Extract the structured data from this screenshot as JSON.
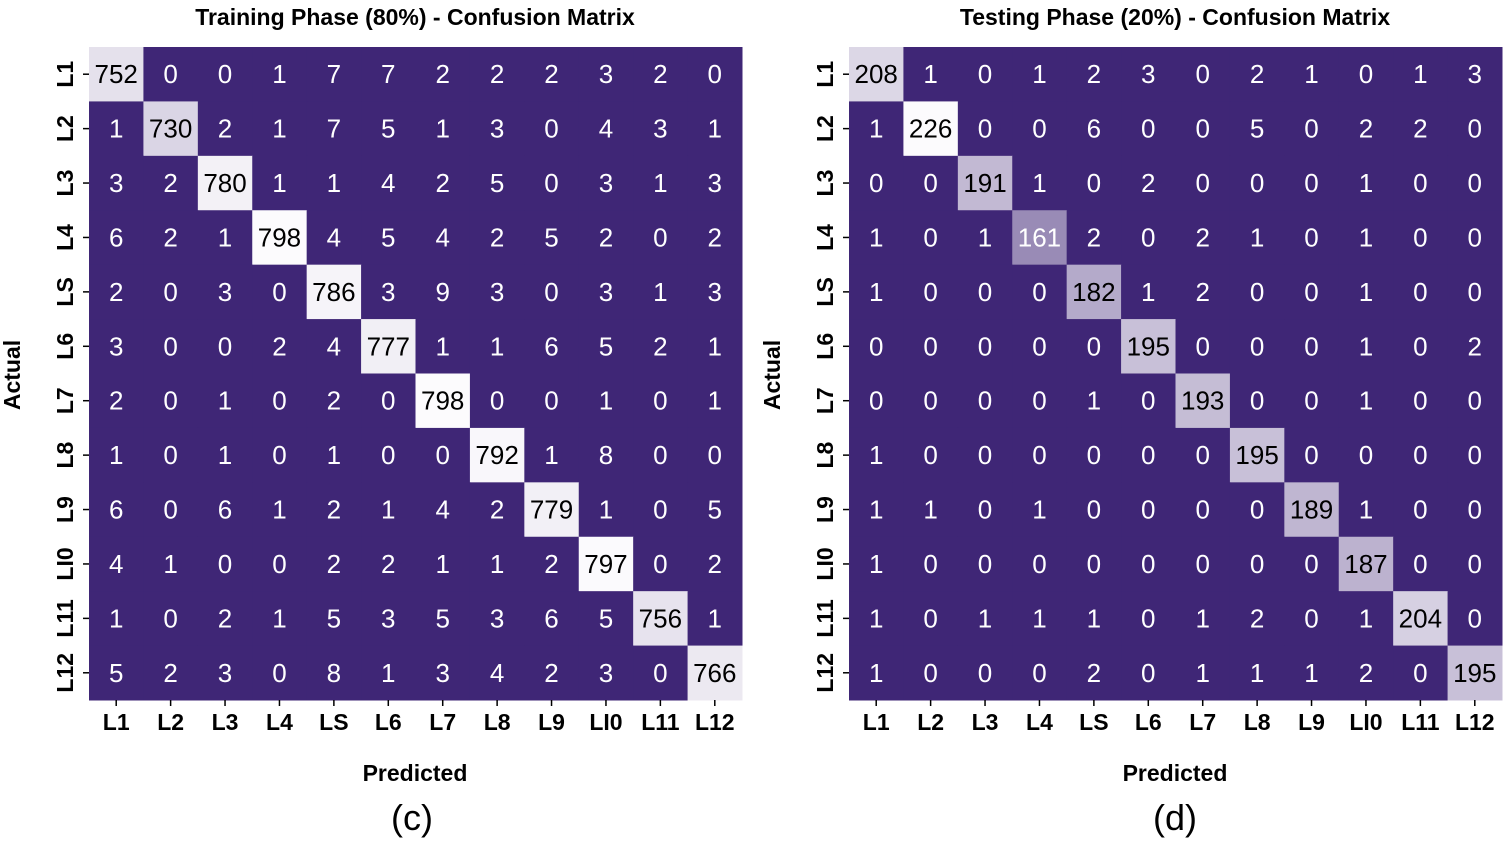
{
  "chart_data": [
    {
      "type": "heatmap",
      "title": "Training Phase (80%) - Confusion Matrix",
      "xlabel": "Predicted",
      "ylabel": "Actual",
      "caption": "(c)",
      "x_labels": [
        "L1",
        "L2",
        "L3",
        "L4",
        "LS",
        "L6",
        "L7",
        "L8",
        "L9",
        "LI0",
        "L11",
        "L12"
      ],
      "y_labels": [
        "L1",
        "L2",
        "L3",
        "L4",
        "LS",
        "L6",
        "L7",
        "L8",
        "L9",
        "LI0",
        "L11",
        "L12"
      ],
      "values": [
        [
          752,
          0,
          0,
          1,
          7,
          7,
          2,
          2,
          2,
          3,
          2,
          0
        ],
        [
          1,
          730,
          2,
          1,
          7,
          5,
          1,
          3,
          0,
          4,
          3,
          1
        ],
        [
          3,
          2,
          780,
          1,
          1,
          4,
          2,
          5,
          0,
          3,
          1,
          3
        ],
        [
          6,
          2,
          1,
          798,
          4,
          5,
          4,
          2,
          5,
          2,
          0,
          2
        ],
        [
          2,
          0,
          3,
          0,
          786,
          3,
          9,
          3,
          0,
          3,
          1,
          3
        ],
        [
          3,
          0,
          0,
          2,
          4,
          777,
          1,
          1,
          6,
          5,
          2,
          1
        ],
        [
          2,
          0,
          1,
          0,
          2,
          0,
          798,
          0,
          0,
          1,
          0,
          1
        ],
        [
          1,
          0,
          1,
          0,
          1,
          0,
          0,
          792,
          1,
          8,
          0,
          0
        ],
        [
          6,
          0,
          6,
          1,
          2,
          1,
          4,
          2,
          779,
          1,
          0,
          5
        ],
        [
          4,
          1,
          0,
          0,
          2,
          2,
          1,
          1,
          2,
          797,
          0,
          2
        ],
        [
          1,
          0,
          2,
          1,
          5,
          3,
          5,
          3,
          6,
          5,
          756,
          1
        ],
        [
          5,
          2,
          3,
          0,
          8,
          1,
          3,
          4,
          2,
          3,
          0,
          766
        ]
      ],
      "colormap": {
        "low": "#3f2676",
        "high": "#fcfbfd"
      }
    },
    {
      "type": "heatmap",
      "title": "Testing Phase (20%) - Confusion Matrix",
      "xlabel": "Predicted",
      "ylabel": "Actual",
      "caption": "(d)",
      "x_labels": [
        "L1",
        "L2",
        "L3",
        "L4",
        "LS",
        "L6",
        "L7",
        "L8",
        "L9",
        "LI0",
        "L11",
        "L12"
      ],
      "y_labels": [
        "L1",
        "L2",
        "L3",
        "L4",
        "LS",
        "L6",
        "L7",
        "L8",
        "L9",
        "LI0",
        "L11",
        "L12"
      ],
      "values": [
        [
          208,
          1,
          0,
          1,
          2,
          3,
          0,
          2,
          1,
          0,
          1,
          3
        ],
        [
          1,
          226,
          0,
          0,
          6,
          0,
          0,
          5,
          0,
          2,
          2,
          0
        ],
        [
          0,
          0,
          191,
          1,
          0,
          2,
          0,
          0,
          0,
          1,
          0,
          0
        ],
        [
          1,
          0,
          1,
          161,
          2,
          0,
          2,
          1,
          0,
          1,
          0,
          0
        ],
        [
          1,
          0,
          0,
          0,
          182,
          1,
          2,
          0,
          0,
          1,
          0,
          0
        ],
        [
          0,
          0,
          0,
          0,
          0,
          195,
          0,
          0,
          0,
          1,
          0,
          2
        ],
        [
          0,
          0,
          0,
          0,
          1,
          0,
          193,
          0,
          0,
          1,
          0,
          0
        ],
        [
          1,
          0,
          0,
          0,
          0,
          0,
          0,
          195,
          0,
          0,
          0,
          0
        ],
        [
          1,
          1,
          0,
          1,
          0,
          0,
          0,
          0,
          189,
          1,
          0,
          0
        ],
        [
          1,
          0,
          0,
          0,
          0,
          0,
          0,
          0,
          0,
          187,
          0,
          0
        ],
        [
          1,
          0,
          1,
          1,
          1,
          0,
          1,
          2,
          0,
          1,
          204,
          0
        ],
        [
          1,
          0,
          0,
          0,
          2,
          0,
          1,
          1,
          1,
          2,
          0,
          195
        ]
      ],
      "colormap": {
        "low": "#3f2676",
        "high": "#fcfbfd"
      }
    }
  ]
}
